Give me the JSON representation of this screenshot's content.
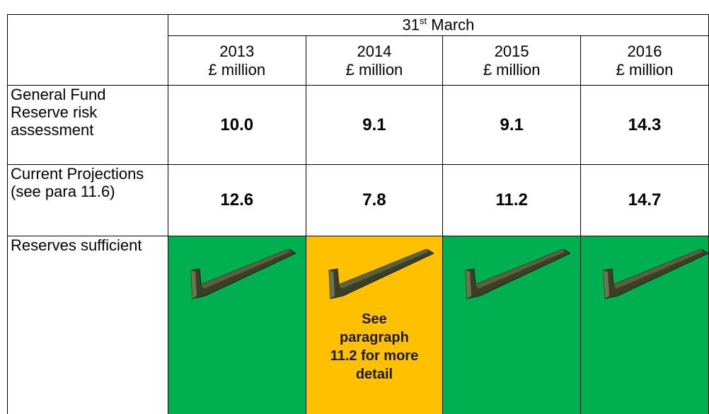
{
  "table": {
    "header": {
      "date_day": "31",
      "date_suffix": "st",
      "date_month": "March",
      "columns": [
        {
          "year": "2013",
          "unit": "£ million"
        },
        {
          "year": "2014",
          "unit": "£ million"
        },
        {
          "year": "2015",
          "unit": "£ million"
        },
        {
          "year": "2016",
          "unit": "£ million"
        }
      ]
    },
    "rows": [
      {
        "label": "General Fund Reserve risk assessment",
        "values": [
          "10.0",
          "9.1",
          "9.1",
          "14.3"
        ]
      },
      {
        "label": "Current Projections (see para 11.6)",
        "values": [
          "12.6",
          "7.8",
          "11.2",
          "14.7"
        ]
      }
    ],
    "status_row": {
      "label": "Reserves sufficient",
      "note": "See paragraph 11.2 for more detail"
    }
  }
}
